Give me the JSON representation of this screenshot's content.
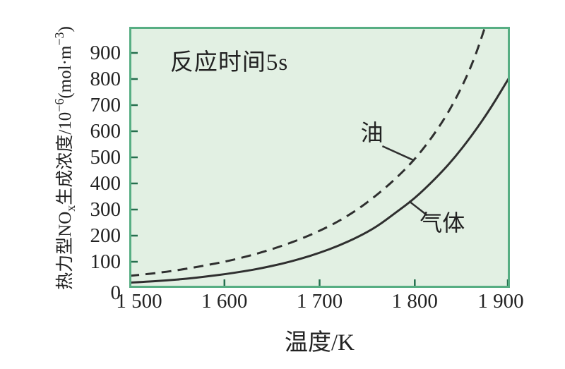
{
  "figure": {
    "xlabel": "温度/K",
    "ylabel": {
      "p1": "热力型NO",
      "sub1": "x",
      "p2": "生成浓度/10",
      "sup1": "−6",
      "p3": "(mol·m",
      "sup2": "−3",
      "p4": ")"
    }
  },
  "colors": {
    "page_bg": "#ffffff",
    "plot_bg": "#e2f0e3",
    "plot_border": "#57ae83",
    "tick": "#256f4e",
    "curve": "#2f2f2f",
    "text": "#222222"
  },
  "chart_data": {
    "type": "line",
    "title": "",
    "xlabel": "温度/K",
    "ylabel": "热力型NOx生成浓度/10⁻⁶(mol·m⁻³)",
    "annotation_note": {
      "id": "reaction-time",
      "text": "反应时间5s",
      "t": 1605,
      "v": 873
    },
    "xlim": [
      1500,
      1900
    ],
    "ylim": [
      0,
      1000
    ],
    "grid": false,
    "legend": "inline-labels",
    "x_ticks": [
      {
        "v": 1500,
        "label": "1 500",
        "dx": 14
      },
      {
        "v": 1600,
        "label": "1 600"
      },
      {
        "v": 1700,
        "label": "1 700"
      },
      {
        "v": 1800,
        "label": "1 800"
      },
      {
        "v": 1900,
        "label": "1 900",
        "dx": -13
      }
    ],
    "y_ticks": [
      {
        "v": 0,
        "label": "0",
        "dy": 7
      },
      {
        "v": 100,
        "label": "100"
      },
      {
        "v": 200,
        "label": "200"
      },
      {
        "v": 300,
        "label": "300"
      },
      {
        "v": 400,
        "label": "400"
      },
      {
        "v": 500,
        "label": "500"
      },
      {
        "v": 600,
        "label": "600"
      },
      {
        "v": 700,
        "label": "700"
      },
      {
        "v": 800,
        "label": "800"
      },
      {
        "v": 900,
        "label": "900"
      }
    ],
    "series": [
      {
        "id": "oil",
        "name": "油",
        "style": "dashed",
        "points": [
          [
            1500,
            46
          ],
          [
            1520,
            53
          ],
          [
            1540,
            62
          ],
          [
            1560,
            73
          ],
          [
            1580,
            86
          ],
          [
            1600,
            100
          ],
          [
            1620,
            117
          ],
          [
            1640,
            137
          ],
          [
            1660,
            160
          ],
          [
            1680,
            187
          ],
          [
            1700,
            218
          ],
          [
            1720,
            255
          ],
          [
            1740,
            300
          ],
          [
            1760,
            355
          ],
          [
            1780,
            418
          ],
          [
            1800,
            492
          ],
          [
            1820,
            585
          ],
          [
            1840,
            700
          ],
          [
            1860,
            850
          ],
          [
            1875,
            1010
          ],
          [
            1885,
            1130
          ]
        ]
      },
      {
        "id": "gas",
        "name": "气体",
        "style": "solid",
        "points": [
          [
            1500,
            20
          ],
          [
            1520,
            24
          ],
          [
            1540,
            29
          ],
          [
            1560,
            35
          ],
          [
            1580,
            43
          ],
          [
            1600,
            52
          ],
          [
            1620,
            63
          ],
          [
            1640,
            76
          ],
          [
            1660,
            92
          ],
          [
            1680,
            111
          ],
          [
            1700,
            134
          ],
          [
            1720,
            161
          ],
          [
            1740,
            194
          ],
          [
            1760,
            234
          ],
          [
            1780,
            288
          ],
          [
            1800,
            343
          ],
          [
            1820,
            412
          ],
          [
            1840,
            490
          ],
          [
            1860,
            583
          ],
          [
            1880,
            689
          ],
          [
            1900,
            810
          ]
        ]
      }
    ],
    "curve_labels": [
      {
        "id": "oil",
        "text": "油",
        "t": 1755,
        "v": 600
      },
      {
        "id": "gas",
        "text": "气体",
        "t": 1829,
        "v": 254
      }
    ],
    "leaders": [
      {
        "id": "oil",
        "from": [
          1766,
          543
        ],
        "to": [
          1798,
          490
        ]
      },
      {
        "id": "gas",
        "from": [
          1794,
          332
        ],
        "to": [
          1813,
          278
        ]
      }
    ]
  }
}
